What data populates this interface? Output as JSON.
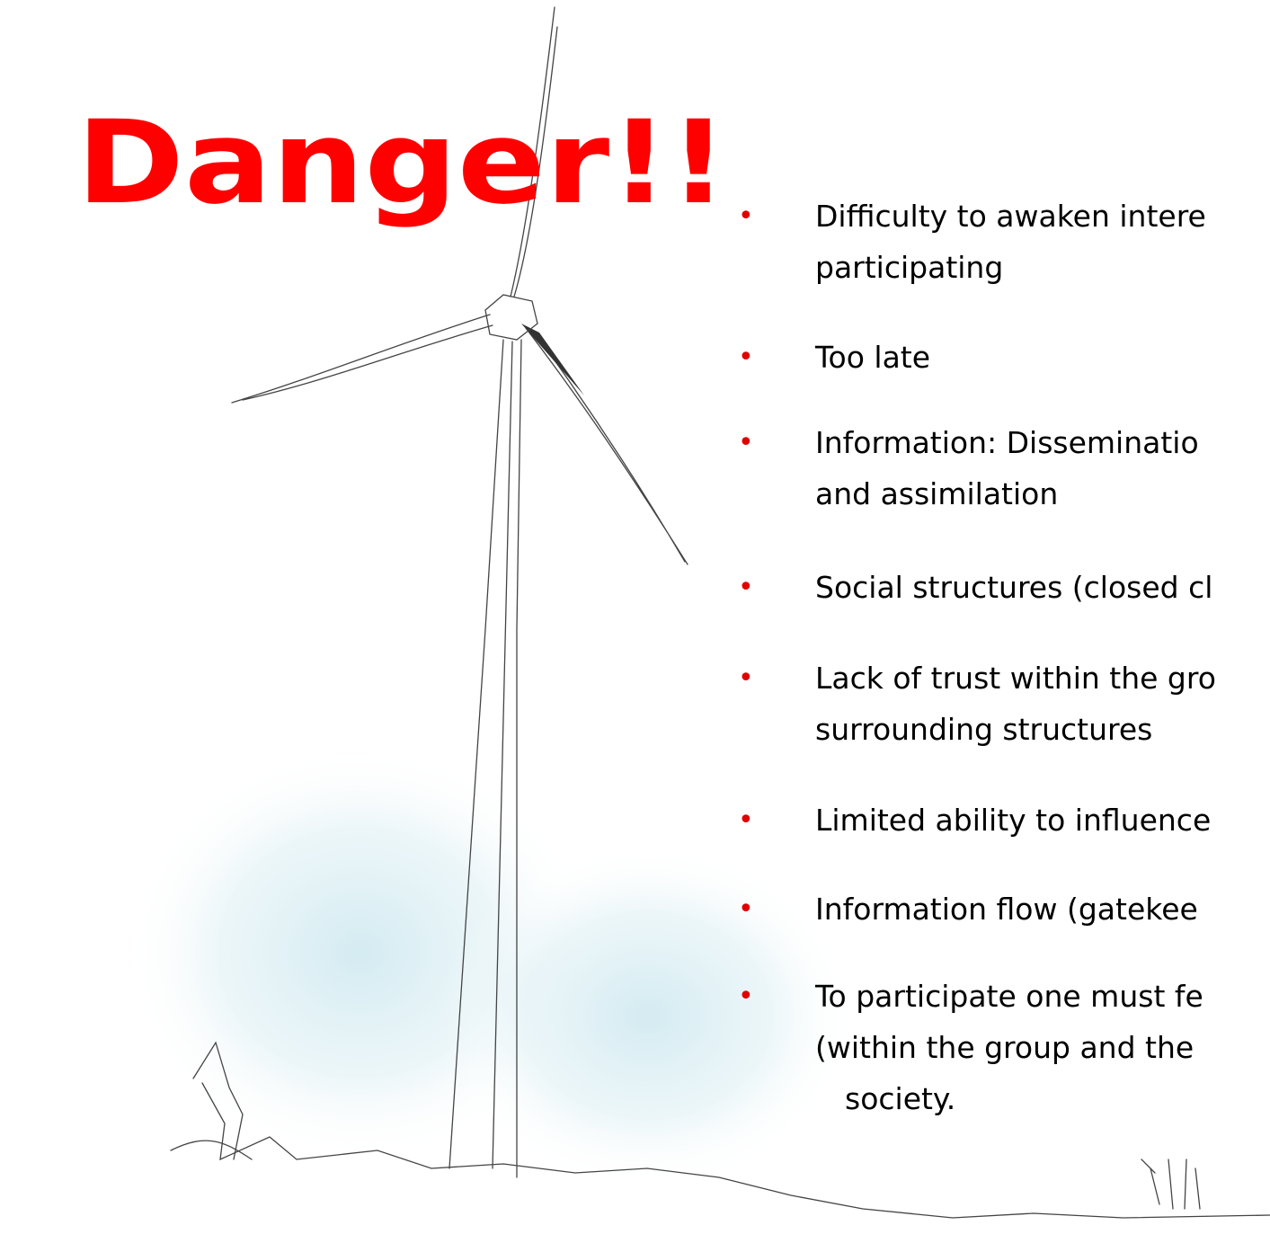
{
  "title": "Danger!!",
  "bullets": [
    [
      "Difficulty to awaken intere",
      "participating"
    ],
    [
      "Too late"
    ],
    [
      "Information: Disseminatio",
      "and assimilation"
    ],
    [
      "Social structures (closed cl"
    ],
    [
      "Lack of trust within the gro",
      "surrounding structures"
    ],
    [
      "Limited ability to influence"
    ],
    [
      "Information flow (gatekee"
    ],
    [
      "To participate one must fe",
      "(within the group and the",
      "society."
    ]
  ]
}
